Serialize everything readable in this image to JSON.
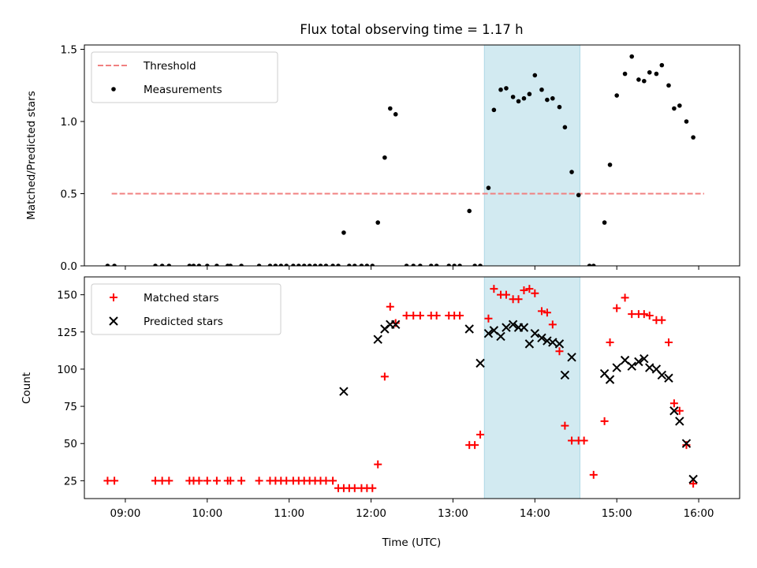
{
  "chart_data": [
    {
      "type": "scatter",
      "title": "Flux total observing time = 1.17 h",
      "xlabel": "",
      "ylabel": "Matched/Predicted stars",
      "ylim": [
        0,
        1.53
      ],
      "yticks": [
        "0.0",
        "0.5",
        "1.0",
        "1.5"
      ],
      "legend_position": "upper-left",
      "highlight_span": {
        "start": "13:23",
        "end": "14:33",
        "color": "#add8e6"
      },
      "threshold": {
        "name": "Threshold",
        "value": 0.5,
        "x_start": "08:50",
        "x_end": "16:04",
        "color": "#f08080"
      },
      "series": [
        {
          "name": "Measurements",
          "color": "#000000",
          "points": [
            [
              "08:47",
              0.0
            ],
            [
              "08:52",
              0.0
            ],
            [
              "09:22",
              0.0
            ],
            [
              "09:27",
              0.0
            ],
            [
              "09:32",
              0.0
            ],
            [
              "09:47",
              0.0
            ],
            [
              "09:50",
              0.0
            ],
            [
              "09:54",
              0.0
            ],
            [
              "10:00",
              0.0
            ],
            [
              "10:07",
              0.0
            ],
            [
              "10:15",
              0.0
            ],
            [
              "10:17",
              0.0
            ],
            [
              "10:25",
              0.0
            ],
            [
              "10:38",
              0.0
            ],
            [
              "10:46",
              0.0
            ],
            [
              "10:50",
              0.0
            ],
            [
              "10:54",
              0.0
            ],
            [
              "10:58",
              0.0
            ],
            [
              "11:03",
              0.0
            ],
            [
              "11:07",
              0.0
            ],
            [
              "11:11",
              0.0
            ],
            [
              "11:15",
              0.0
            ],
            [
              "11:19",
              0.0
            ],
            [
              "11:23",
              0.0
            ],
            [
              "11:27",
              0.0
            ],
            [
              "11:32",
              0.0
            ],
            [
              "11:36",
              0.0
            ],
            [
              "11:40",
              0.23
            ],
            [
              "11:44",
              0.0
            ],
            [
              "11:48",
              0.0
            ],
            [
              "11:53",
              0.0
            ],
            [
              "11:57",
              0.0
            ],
            [
              "12:01",
              0.0
            ],
            [
              "12:05",
              0.3
            ],
            [
              "12:10",
              0.75
            ],
            [
              "12:14",
              1.09
            ],
            [
              "12:18",
              1.05
            ],
            [
              "12:26",
              0.0
            ],
            [
              "12:31",
              0.0
            ],
            [
              "12:36",
              0.0
            ],
            [
              "12:44",
              0.0
            ],
            [
              "12:48",
              0.0
            ],
            [
              "12:57",
              0.0
            ],
            [
              "13:01",
              0.0
            ],
            [
              "13:05",
              0.0
            ],
            [
              "13:12",
              0.38
            ],
            [
              "13:16",
              0.0
            ],
            [
              "13:20",
              0.0
            ],
            [
              "13:26",
              0.54
            ],
            [
              "13:30",
              1.08
            ],
            [
              "13:35",
              1.22
            ],
            [
              "13:39",
              1.23
            ],
            [
              "13:44",
              1.17
            ],
            [
              "13:48",
              1.14
            ],
            [
              "13:52",
              1.16
            ],
            [
              "13:56",
              1.19
            ],
            [
              "14:00",
              1.32
            ],
            [
              "14:05",
              1.22
            ],
            [
              "14:09",
              1.15
            ],
            [
              "14:13",
              1.16
            ],
            [
              "14:18",
              1.1
            ],
            [
              "14:22",
              0.96
            ],
            [
              "14:27",
              0.65
            ],
            [
              "14:32",
              0.49
            ],
            [
              "14:40",
              0.0
            ],
            [
              "14:43",
              0.0
            ],
            [
              "14:51",
              0.3
            ],
            [
              "14:55",
              0.7
            ],
            [
              "15:00",
              1.18
            ],
            [
              "15:06",
              1.33
            ],
            [
              "15:11",
              1.45
            ],
            [
              "15:16",
              1.29
            ],
            [
              "15:20",
              1.28
            ],
            [
              "15:24",
              1.34
            ],
            [
              "15:29",
              1.33
            ],
            [
              "15:33",
              1.39
            ],
            [
              "15:38",
              1.25
            ],
            [
              "15:42",
              1.09
            ],
            [
              "15:46",
              1.11
            ],
            [
              "15:51",
              1.0
            ],
            [
              "15:56",
              0.89
            ]
          ]
        }
      ]
    },
    {
      "type": "scatter",
      "title": "",
      "xlabel": "Time (UTC)",
      "ylabel": "Count",
      "ylim": [
        13,
        162
      ],
      "yticks": [
        "25",
        "50",
        "75",
        "100",
        "125",
        "150"
      ],
      "xlim": [
        "08:30",
        "16:30"
      ],
      "xticks": [
        "09:00",
        "10:00",
        "11:00",
        "12:00",
        "13:00",
        "14:00",
        "15:00",
        "16:00"
      ],
      "legend_position": "upper-left",
      "highlight_span": {
        "start": "13:23",
        "end": "14:33",
        "color": "#add8e6"
      },
      "series": [
        {
          "name": "Matched stars",
          "marker": "+",
          "color": "#ff0000",
          "points": [
            [
              "08:47",
              25
            ],
            [
              "08:52",
              25
            ],
            [
              "09:22",
              25
            ],
            [
              "09:27",
              25
            ],
            [
              "09:32",
              25
            ],
            [
              "09:47",
              25
            ],
            [
              "09:50",
              25
            ],
            [
              "09:54",
              25
            ],
            [
              "10:00",
              25
            ],
            [
              "10:07",
              25
            ],
            [
              "10:15",
              25
            ],
            [
              "10:17",
              25
            ],
            [
              "10:25",
              25
            ],
            [
              "10:38",
              25
            ],
            [
              "10:46",
              25
            ],
            [
              "10:50",
              25
            ],
            [
              "10:54",
              25
            ],
            [
              "10:58",
              25
            ],
            [
              "11:03",
              25
            ],
            [
              "11:07",
              25
            ],
            [
              "11:11",
              25
            ],
            [
              "11:15",
              25
            ],
            [
              "11:19",
              25
            ],
            [
              "11:23",
              25
            ],
            [
              "11:27",
              25
            ],
            [
              "11:32",
              25
            ],
            [
              "11:36",
              20
            ],
            [
              "11:40",
              20
            ],
            [
              "11:44",
              20
            ],
            [
              "11:48",
              20
            ],
            [
              "11:53",
              20
            ],
            [
              "11:57",
              20
            ],
            [
              "12:01",
              20
            ],
            [
              "12:05",
              36
            ],
            [
              "12:10",
              95
            ],
            [
              "12:14",
              142
            ],
            [
              "12:18",
              131
            ],
            [
              "12:26",
              136
            ],
            [
              "12:31",
              136
            ],
            [
              "12:36",
              136
            ],
            [
              "12:44",
              136
            ],
            [
              "12:48",
              136
            ],
            [
              "12:57",
              136
            ],
            [
              "13:01",
              136
            ],
            [
              "13:05",
              136
            ],
            [
              "13:12",
              49
            ],
            [
              "13:16",
              49
            ],
            [
              "13:20",
              56
            ],
            [
              "13:26",
              134
            ],
            [
              "13:30",
              154
            ],
            [
              "13:35",
              150
            ],
            [
              "13:39",
              150
            ],
            [
              "13:44",
              147
            ],
            [
              "13:48",
              147
            ],
            [
              "13:52",
              153
            ],
            [
              "13:56",
              154
            ],
            [
              "14:00",
              151
            ],
            [
              "14:05",
              139
            ],
            [
              "14:09",
              138
            ],
            [
              "14:13",
              130
            ],
            [
              "14:18",
              112
            ],
            [
              "14:22",
              62
            ],
            [
              "14:27",
              52
            ],
            [
              "14:32",
              52
            ],
            [
              "14:36",
              52
            ],
            [
              "14:43",
              29
            ],
            [
              "14:51",
              65
            ],
            [
              "14:55",
              118
            ],
            [
              "15:00",
              141
            ],
            [
              "15:06",
              148
            ],
            [
              "15:11",
              137
            ],
            [
              "15:16",
              137
            ],
            [
              "15:20",
              137
            ],
            [
              "15:24",
              136
            ],
            [
              "15:29",
              133
            ],
            [
              "15:33",
              133
            ],
            [
              "15:38",
              118
            ],
            [
              "15:42",
              77
            ],
            [
              "15:46",
              72
            ],
            [
              "15:51",
              49
            ],
            [
              "15:56",
              23
            ]
          ]
        },
        {
          "name": "Predicted stars",
          "marker": "x",
          "color": "#000000",
          "points": [
            [
              "11:40",
              85
            ],
            [
              "12:05",
              120
            ],
            [
              "12:10",
              127
            ],
            [
              "12:14",
              130
            ],
            [
              "12:18",
              130
            ],
            [
              "13:12",
              127
            ],
            [
              "13:20",
              104
            ],
            [
              "13:26",
              124
            ],
            [
              "13:30",
              126
            ],
            [
              "13:35",
              122
            ],
            [
              "13:39",
              128
            ],
            [
              "13:44",
              130
            ],
            [
              "13:48",
              128
            ],
            [
              "13:52",
              128
            ],
            [
              "13:56",
              117
            ],
            [
              "14:00",
              124
            ],
            [
              "14:05",
              121
            ],
            [
              "14:09",
              119
            ],
            [
              "14:13",
              118
            ],
            [
              "14:18",
              117
            ],
            [
              "14:22",
              96
            ],
            [
              "14:27",
              108
            ],
            [
              "14:51",
              97
            ],
            [
              "14:55",
              93
            ],
            [
              "15:00",
              101
            ],
            [
              "15:06",
              106
            ],
            [
              "15:11",
              102
            ],
            [
              "15:16",
              105
            ],
            [
              "15:20",
              107
            ],
            [
              "15:24",
              101
            ],
            [
              "15:29",
              100
            ],
            [
              "15:33",
              96
            ],
            [
              "15:38",
              94
            ],
            [
              "15:42",
              72
            ],
            [
              "15:46",
              65
            ],
            [
              "15:51",
              50
            ],
            [
              "15:56",
              26
            ]
          ]
        }
      ]
    }
  ]
}
